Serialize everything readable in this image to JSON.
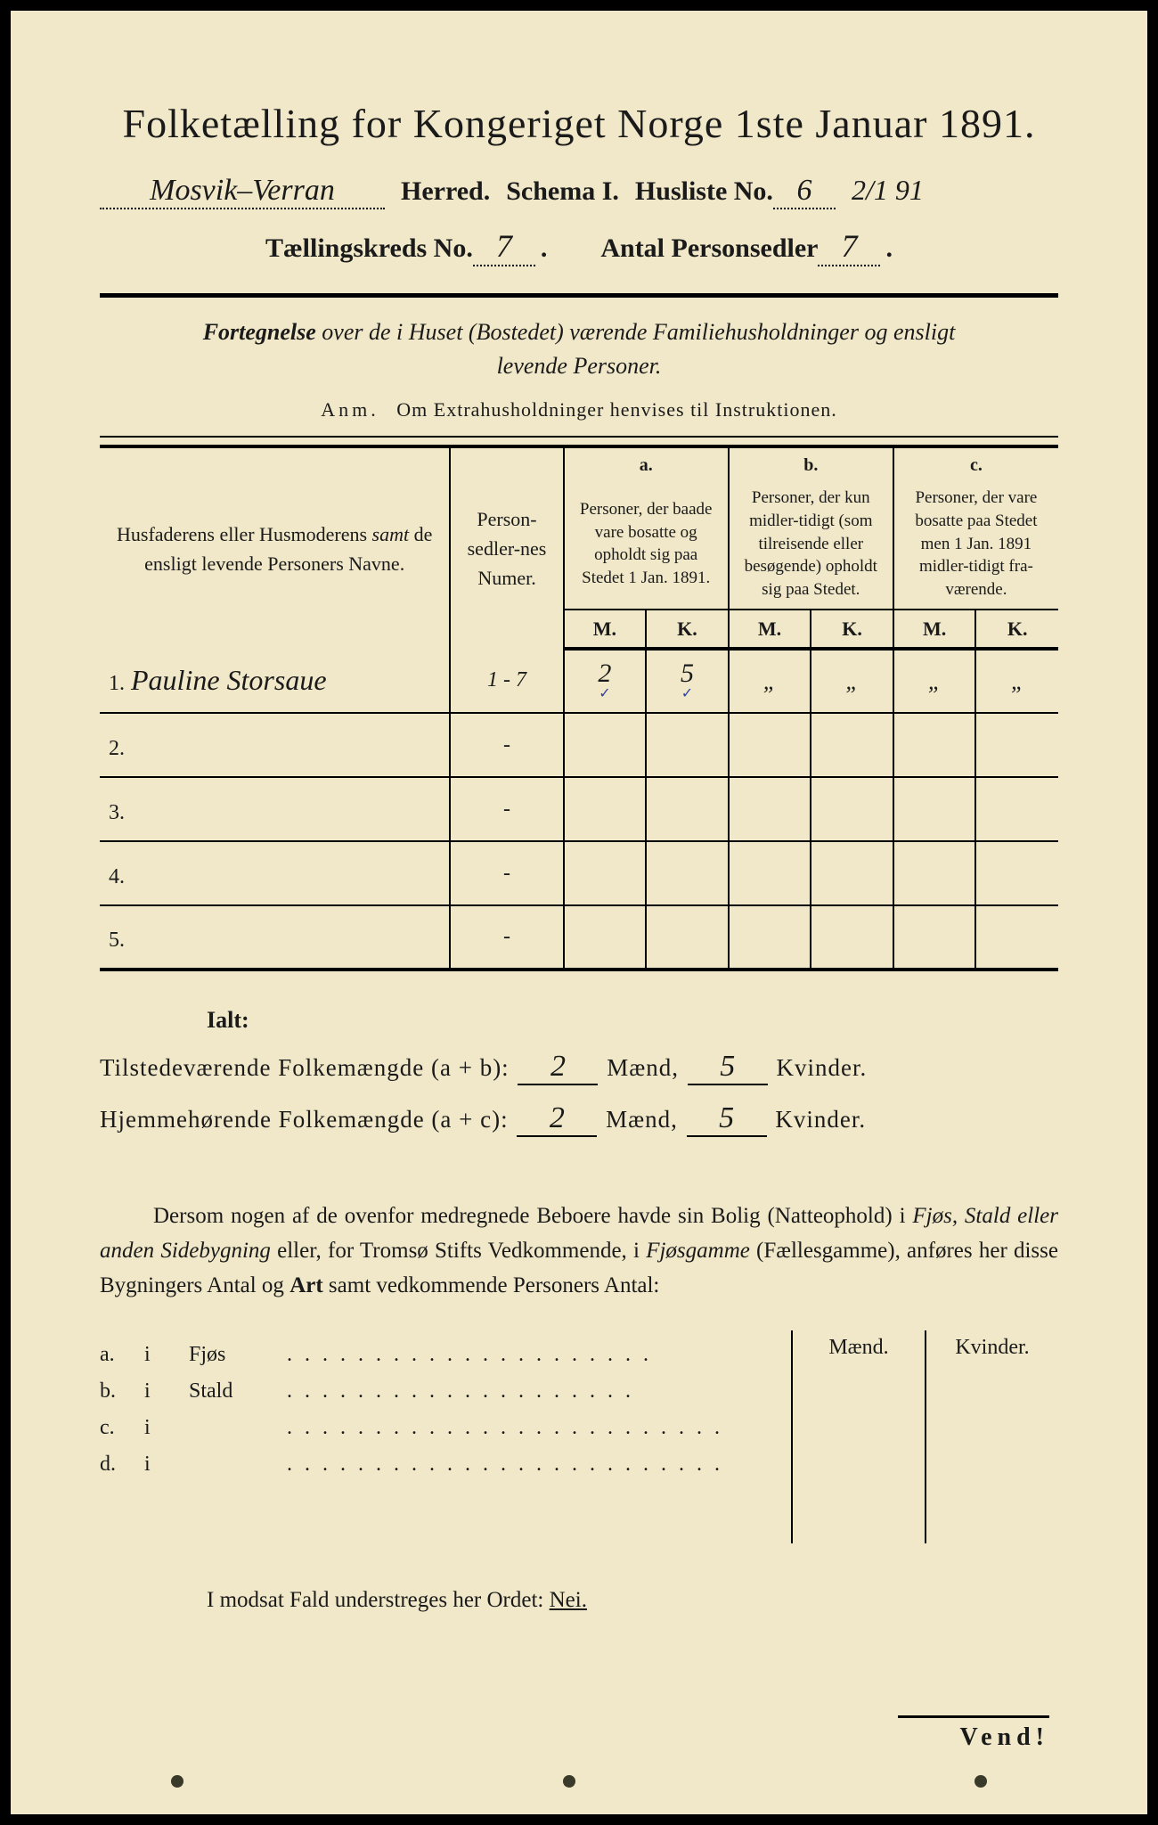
{
  "colors": {
    "paper": "#f0e8c8",
    "ink": "#1a1a1a",
    "border": "#000000",
    "handwriting": "#2a2a2a",
    "checkmark": "#3040a0"
  },
  "title": "Folketælling for Kongeriget Norge 1ste Januar 1891.",
  "header": {
    "herred_hw": "Mosvik–Verran",
    "herred_label": "Herred.",
    "schema_label": "Schema I.",
    "husliste_label": "Husliste No.",
    "husliste_hw": "6",
    "corner_hw": "2/1 91",
    "kreds_label": "Tællingskreds No.",
    "kreds_hw": "7",
    "sedler_label": "Antal Personsedler",
    "sedler_hw": "7"
  },
  "subtitle_html": "Fortegnelse over de i Huset (Bostedet) værende Familiehusholdninger og ensligt levende Personer.",
  "anm": {
    "lead": "Anm.",
    "text": "Om Extrahusholdninger henvises til Instruktionen."
  },
  "table": {
    "col_name": "Husfaderens eller Husmoderens samt de ensligt levende Personers Navne.",
    "col_num": "Person-sedler-nes Numer.",
    "col_a_letter": "a.",
    "col_a": "Personer, der baade vare bosatte og opholdt sig paa Stedet 1 Jan. 1891.",
    "col_b_letter": "b.",
    "col_b": "Personer, der kun midler-tidigt (som tilreisende eller besøgende) opholdt sig paa Stedet.",
    "col_c_letter": "c.",
    "col_c": "Personer, der vare bosatte paa Stedet men 1 Jan. 1891 midler-tidigt fra-værende.",
    "mk_m": "M.",
    "mk_k": "K.",
    "rows": [
      {
        "n": "1.",
        "name": "Pauline Storsaue",
        "num": "1 - 7",
        "a_m": "2",
        "a_k": "5",
        "b_m": "„",
        "b_k": "„",
        "c_m": "„",
        "c_k": "„",
        "checks": true
      },
      {
        "n": "2.",
        "name": "",
        "num": "-",
        "a_m": "",
        "a_k": "",
        "b_m": "",
        "b_k": "",
        "c_m": "",
        "c_k": ""
      },
      {
        "n": "3.",
        "name": "",
        "num": "-",
        "a_m": "",
        "a_k": "",
        "b_m": "",
        "b_k": "",
        "c_m": "",
        "c_k": ""
      },
      {
        "n": "4.",
        "name": "",
        "num": "-",
        "a_m": "",
        "a_k": "",
        "b_m": "",
        "b_k": "",
        "c_m": "",
        "c_k": ""
      },
      {
        "n": "5.",
        "name": "",
        "num": "-",
        "a_m": "",
        "a_k": "",
        "b_m": "",
        "b_k": "",
        "c_m": "",
        "c_k": ""
      }
    ]
  },
  "totals": {
    "ialt": "Ialt:",
    "line1_label": "Tilstedeværende Folkemængde (a + b):",
    "line2_label": "Hjemmehørende Folkemængde (a + c):",
    "maend": "Mænd,",
    "kvinder": "Kvinder.",
    "l1_m": "2",
    "l1_k": "5",
    "l2_m": "2",
    "l2_k": "5"
  },
  "paragraph": "Dersom nogen af de ovenfor medregnede Beboere havde sin Bolig (Natteophold) i Fjøs, Stald eller anden Sidebygning eller, for Tromsø Stifts Vedkommende, i Fjøsgamme (Fællesgamme), anføres her disse Bygningers Antal og Art samt vedkommende Personers Antal:",
  "bottom": {
    "hdr_m": "Mænd.",
    "hdr_k": "Kvinder.",
    "rows": [
      {
        "k": "a.",
        "i": "i",
        "label": "Fjøs"
      },
      {
        "k": "b.",
        "i": "i",
        "label": "Stald"
      },
      {
        "k": "c.",
        "i": "i",
        "label": ""
      },
      {
        "k": "d.",
        "i": "i",
        "label": ""
      }
    ]
  },
  "nei_line": {
    "pre": "I modsat Fald understreges her Ordet:",
    "word": "Nei."
  },
  "vend": "Vend!"
}
